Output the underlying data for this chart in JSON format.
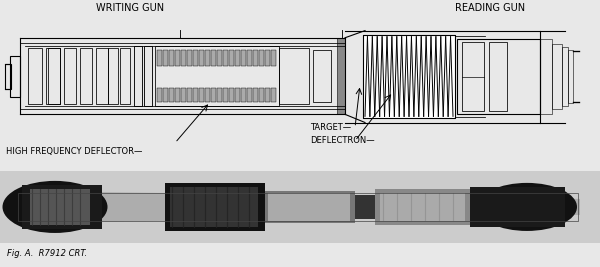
{
  "bg_color": "#e8e8e8",
  "title_text": "Fig. A.  R7912 CRT.",
  "labels": {
    "writing_gun": "WRITING GUN",
    "reading_gun": "READING GUN",
    "hf_deflector": "HIGH FREQUENCY DEFLECTOR",
    "target": "TARGET",
    "deflectron": "DEFLECTRON"
  },
  "fig_width": 6.0,
  "fig_height": 2.67
}
